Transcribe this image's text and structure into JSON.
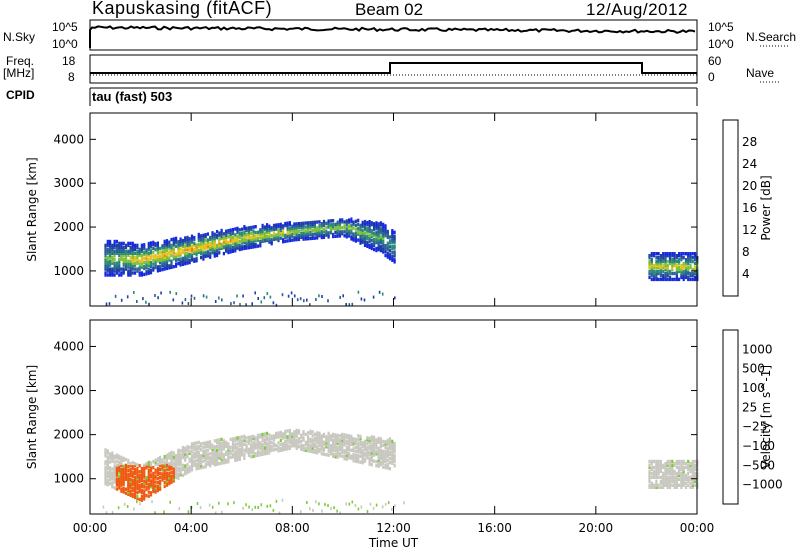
{
  "header": {
    "station": "Kapuskasing (fitACF)",
    "beam": "Beam 02",
    "date": "12/Aug/2012"
  },
  "strip_noise": {
    "left_label": "N.Sky",
    "right_label": "N.Search",
    "left_ticks": [
      "10^5",
      "10^0"
    ],
    "right_ticks": [
      "10^5",
      "10^0"
    ]
  },
  "strip_freq": {
    "left_label_1": "Freq.",
    "left_label_2": "[MHz]",
    "right_label": "Nave",
    "left_ticks": [
      "18",
      "8"
    ],
    "right_ticks": [
      "60",
      "0"
    ]
  },
  "cpid": {
    "label": "CPID",
    "text": "tau (fast) 503"
  },
  "colors": {
    "power": [
      "#1528e0",
      "#1f3fa6",
      "#2c5f98",
      "#2a8a7a",
      "#7fbf3a",
      "#e6c21a",
      "#ef7d12",
      "#ef2a12"
    ],
    "velocity": [
      "#e01818",
      "#ef5a12",
      "#ef9a1a",
      "#c8c8c0",
      "#c8c8c0",
      "#7ccc3a",
      "#3a9a58",
      "#2e6aac",
      "#2233b8"
    ]
  },
  "chart_data": [
    {
      "type": "heatmap",
      "title": "",
      "xlabel": "",
      "ylabel": "Slant Range [km]",
      "x_ticks": [
        "00:00",
        "04:00",
        "08:00",
        "12:00",
        "16:00",
        "20:00",
        "00:00"
      ],
      "x_range_hours": [
        0,
        24
      ],
      "y_ticks": [
        "1000",
        "2000",
        "3000",
        "4000"
      ],
      "ylim": [
        200,
        4600
      ],
      "colorbar": {
        "label": "Power [dB]",
        "ticks": [
          "4",
          "8",
          "12",
          "16",
          "20",
          "24",
          "28"
        ],
        "range": [
          0,
          32
        ]
      },
      "echo_band": [
        {
          "t": 0.5,
          "lo": 900,
          "hi": 1700,
          "peak": 16
        },
        {
          "t": 2,
          "lo": 900,
          "hi": 1600,
          "peak": 22
        },
        {
          "t": 4,
          "lo": 1200,
          "hi": 1800,
          "peak": 24
        },
        {
          "t": 6,
          "lo": 1500,
          "hi": 2000,
          "peak": 22
        },
        {
          "t": 8,
          "lo": 1700,
          "hi": 2100,
          "peak": 20
        },
        {
          "t": 10,
          "lo": 1800,
          "hi": 2200,
          "peak": 18
        },
        {
          "t": 11.5,
          "lo": 1400,
          "hi": 2100,
          "peak": 16
        },
        {
          "t": 12,
          "lo": 1200,
          "hi": 1900,
          "peak": 14
        },
        {
          "t": 22,
          "lo": 800,
          "hi": 1400,
          "peak": 22
        },
        {
          "t": 24,
          "lo": 800,
          "hi": 1400,
          "peak": 20
        }
      ]
    },
    {
      "type": "heatmap",
      "title": "",
      "xlabel": "Time UT",
      "ylabel": "Slant Range [km]",
      "x_ticks": [
        "00:00",
        "04:00",
        "08:00",
        "12:00",
        "16:00",
        "20:00",
        "00:00"
      ],
      "x_range_hours": [
        0,
        24
      ],
      "y_ticks": [
        "1000",
        "2000",
        "3000",
        "4000"
      ],
      "ylim": [
        200,
        4600
      ],
      "colorbar": {
        "label": "Velocity [m s^-1]",
        "ticks": [
          "-1000",
          "-500",
          "-100",
          "-25",
          "25",
          "100",
          "500",
          "1000"
        ],
        "range": [
          -1250,
          1250
        ]
      },
      "echo_band": [
        {
          "t": 0.5,
          "lo": 900,
          "hi": 1700,
          "v": 0
        },
        {
          "t": 2,
          "lo": 500,
          "hi": 1300,
          "v": -150
        },
        {
          "t": 4,
          "lo": 1200,
          "hi": 1800,
          "v": 0
        },
        {
          "t": 8,
          "lo": 1700,
          "hi": 2100,
          "v": 0
        },
        {
          "t": 12,
          "lo": 1200,
          "hi": 1900,
          "v": 0
        },
        {
          "t": 22,
          "lo": 800,
          "hi": 1400,
          "v": 0
        },
        {
          "t": 24,
          "lo": 800,
          "hi": 1400,
          "v": 0
        }
      ]
    }
  ]
}
